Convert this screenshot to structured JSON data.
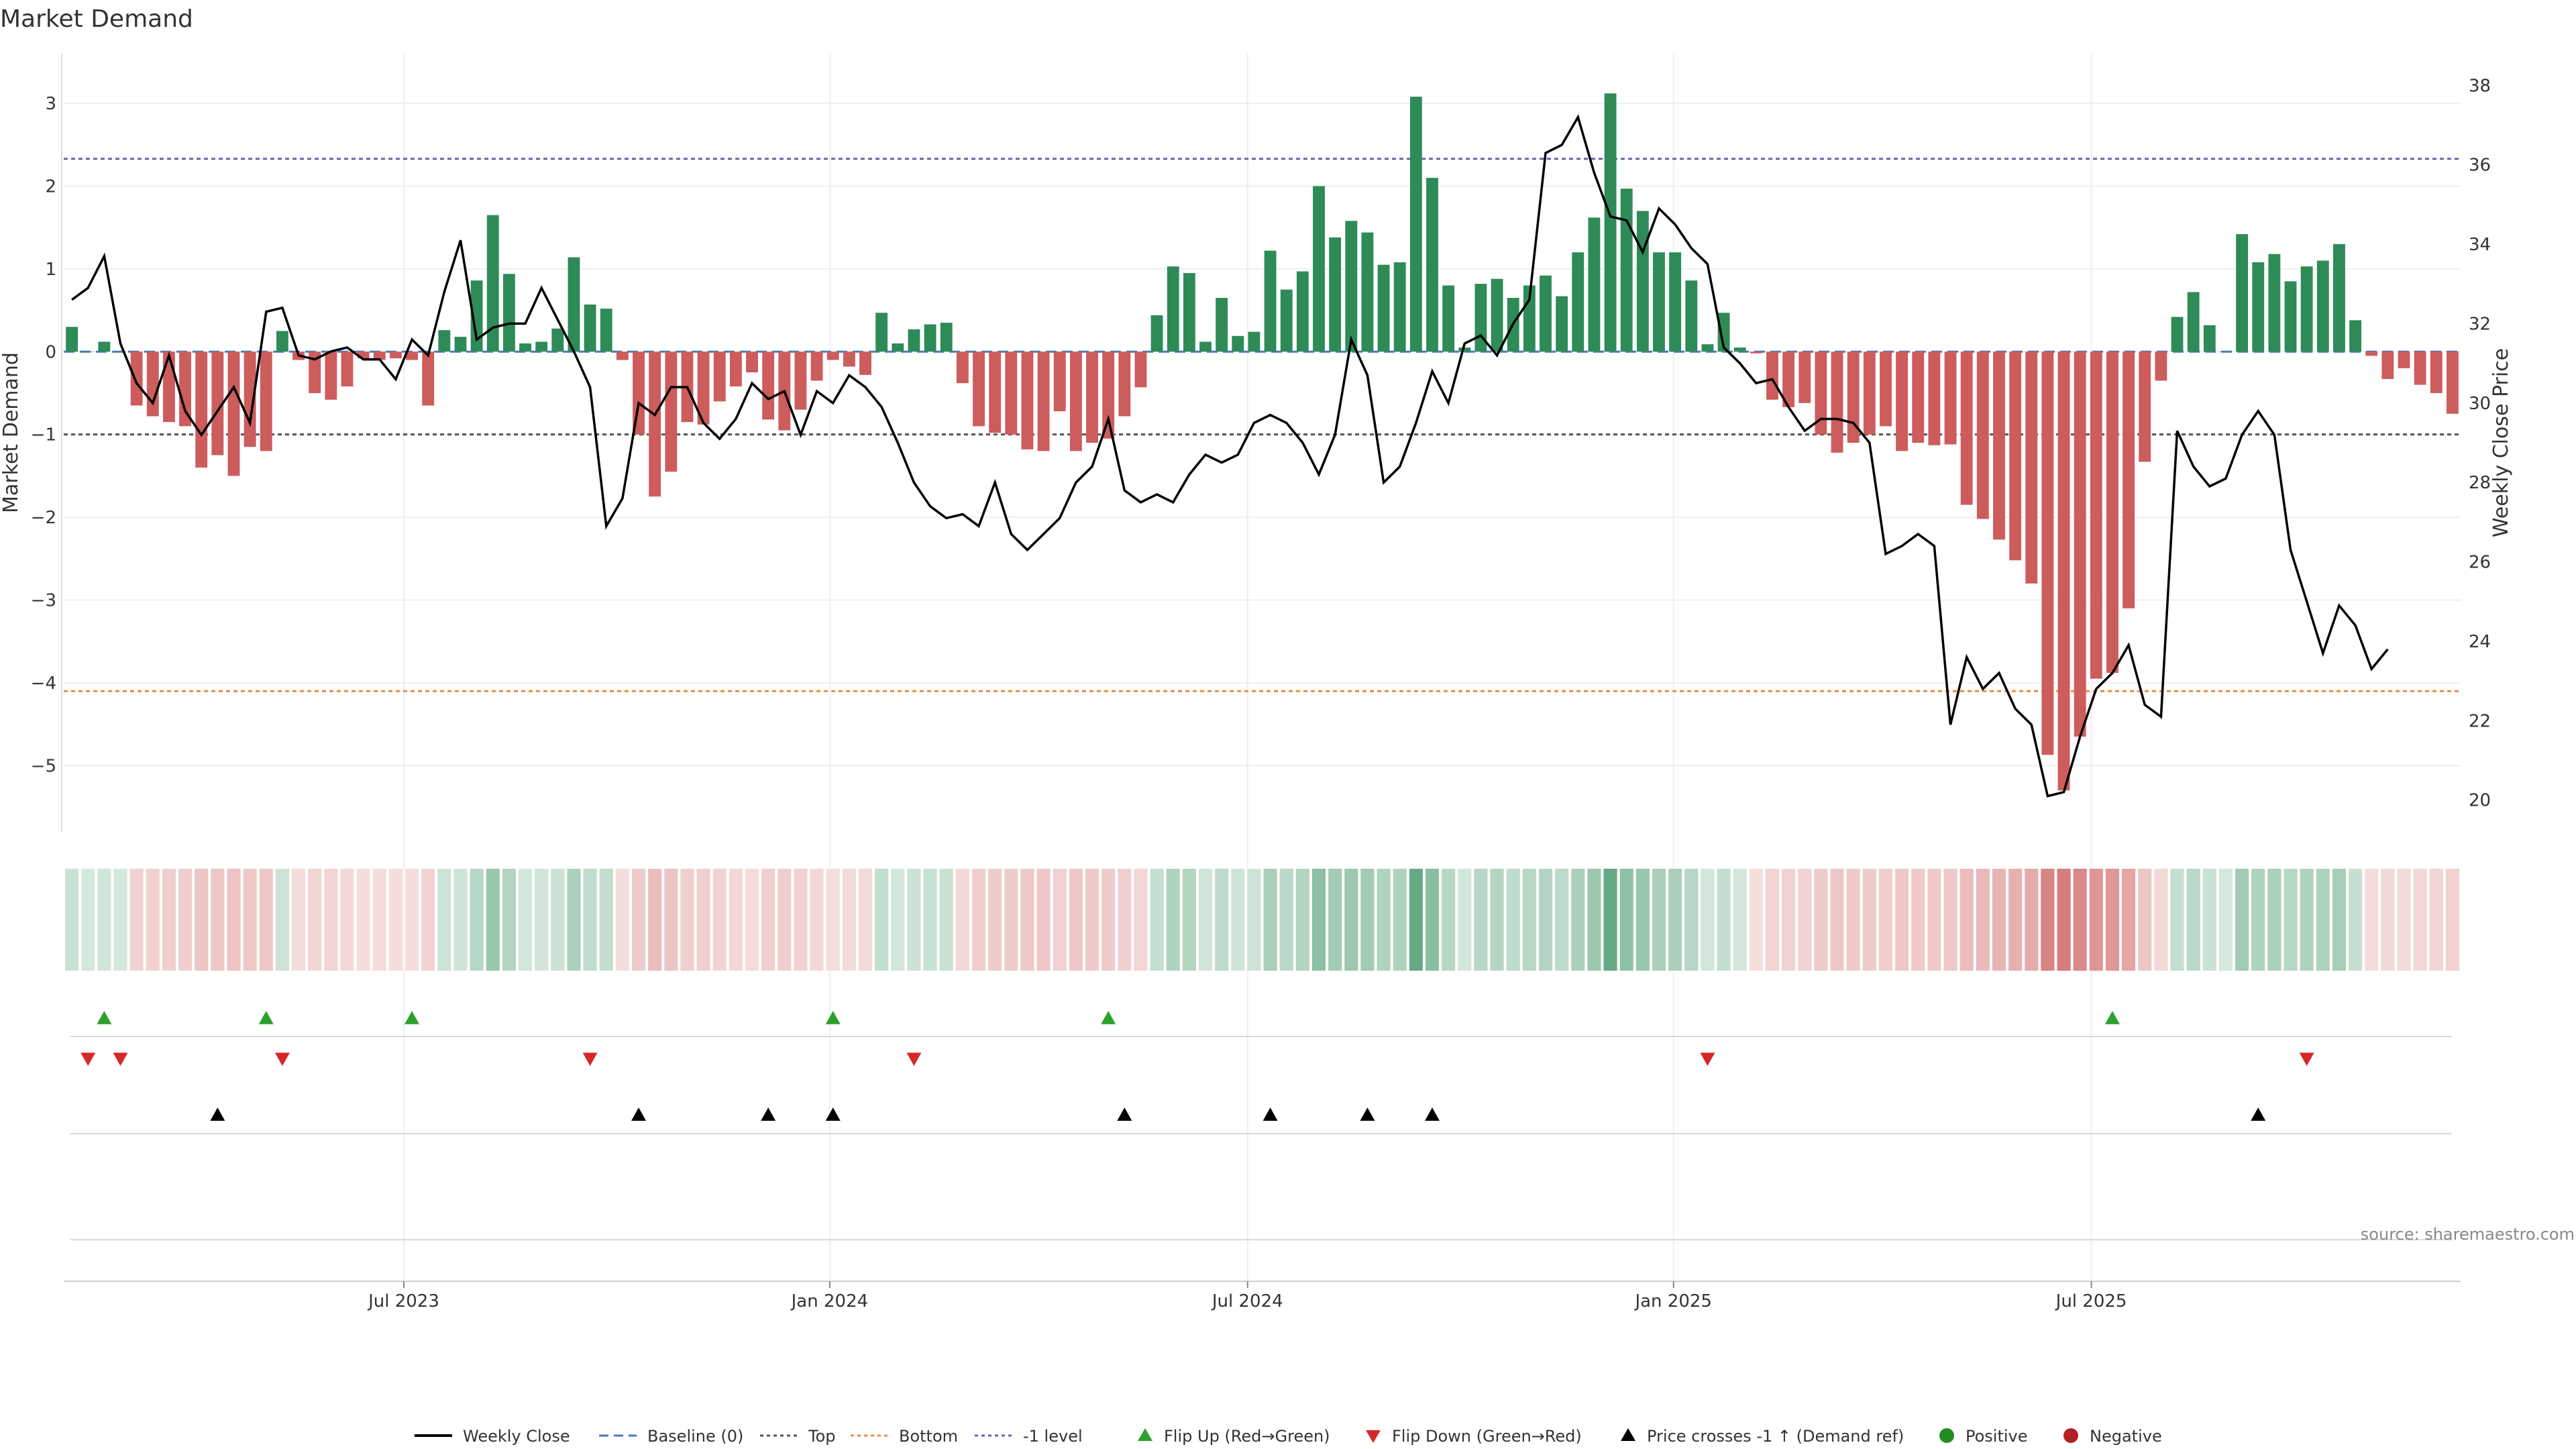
{
  "chart_data": {
    "type": "bar",
    "title": "Market Demand",
    "ylabel": "Market Demand",
    "y2label": "Weekly Close Price",
    "ylim": [
      -5.8,
      3.6
    ],
    "y2lim": [
      19.2,
      38.8
    ],
    "y_ticks": [
      3,
      2,
      1,
      0,
      -1,
      -2,
      -3,
      -4,
      -5
    ],
    "y_tick_labels": [
      "3",
      "2",
      "1",
      "0",
      "−1",
      "−2",
      "−3",
      "−4",
      "−5"
    ],
    "y2_ticks": [
      38,
      36,
      34,
      32,
      30,
      28,
      26,
      24,
      22,
      20
    ],
    "y2_tick_labels": [
      "38",
      "36",
      "34",
      "32",
      "30",
      "28",
      "26",
      "24",
      "22",
      "20"
    ],
    "x_start": "2023-02-05",
    "x_ticks": [
      {
        "label": "Jul 2023",
        "week": 21
      },
      {
        "label": "Jan 2024",
        "week": 47.3
      },
      {
        "label": "Jul 2024",
        "week": 73.1
      },
      {
        "label": "Jan 2025",
        "week": 99.4
      },
      {
        "label": "Jul 2025",
        "week": 125.2
      }
    ],
    "reference_lines": [
      {
        "name": "Top",
        "value": 2.33,
        "color": "#6b5fb5"
      },
      {
        "name": "Bottom",
        "value": -4.1,
        "color": "#f0883e"
      },
      {
        "name": "-1 level",
        "value": -1.0,
        "color": "#555555"
      },
      {
        "name": "Baseline (0)",
        "value": 0,
        "color": "#4a78c2"
      }
    ],
    "demand": [
      0.3,
      0,
      0.12,
      0,
      -0.65,
      -0.78,
      -0.85,
      -0.9,
      -1.4,
      -1.25,
      -1.5,
      -1.15,
      -1.2,
      0.25,
      -0.1,
      -0.5,
      -0.58,
      -0.42,
      -0.08,
      -0.1,
      -0.08,
      -0.1,
      -0.65,
      0.26,
      0.18,
      0.86,
      1.65,
      0.94,
      0.1,
      0.12,
      0.28,
      1.14,
      0.57,
      0.52,
      -0.1,
      -1.0,
      -1.75,
      -1.45,
      -0.85,
      -0.88,
      -0.6,
      -0.42,
      -0.25,
      -0.82,
      -0.95,
      -0.7,
      -0.35,
      -0.1,
      -0.18,
      -0.28,
      0.47,
      0.1,
      0.27,
      0.33,
      0.35,
      -0.38,
      -0.9,
      -0.98,
      -1.0,
      -1.18,
      -1.2,
      -0.72,
      -1.2,
      -1.1,
      -1.05,
      -0.78,
      -0.43,
      0.44,
      1.03,
      0.95,
      0.12,
      0.65,
      0.19,
      0.24,
      1.22,
      0.75,
      0.97,
      2.0,
      1.38,
      1.58,
      1.44,
      1.05,
      1.08,
      3.08,
      2.1,
      0.8,
      0.05,
      0.82,
      0.88,
      0.65,
      0.8,
      0.92,
      0.67,
      1.2,
      1.62,
      3.12,
      1.97,
      1.7,
      1.2,
      1.2,
      0.86,
      0.09,
      0.47,
      0.05,
      -0.02,
      -0.58,
      -0.67,
      -0.62,
      -1.0,
      -1.22,
      -1.1,
      -1.0,
      -0.9,
      -1.2,
      -1.1,
      -1.13,
      -1.12,
      -1.85,
      -2.02,
      -2.27,
      -2.52,
      -2.8,
      -4.87,
      -5.3,
      -4.65,
      -3.95,
      -3.88,
      -3.1,
      -1.33,
      -0.35,
      0.42,
      0.72,
      0.32,
      0,
      1.42,
      1.08,
      1.18,
      0.85,
      1.03,
      1.1,
      1.3,
      0.38,
      -0.05,
      -0.33,
      -0.2,
      -0.4,
      -0.5,
      -0.75
    ],
    "weekly_close": [
      32.6,
      32.9,
      33.7,
      31.5,
      30.5,
      30.0,
      31.2,
      29.8,
      29.2,
      29.8,
      30.4,
      29.5,
      32.3,
      32.4,
      31.2,
      31.1,
      31.3,
      31.4,
      31.1,
      31.1,
      30.6,
      31.6,
      31.2,
      32.8,
      34.1,
      31.6,
      31.9,
      32.0,
      32.0,
      32.9,
      32.1,
      31.3,
      30.4,
      26.9,
      27.6,
      30.0,
      29.7,
      30.4,
      30.4,
      29.5,
      29.1,
      29.6,
      30.5,
      30.1,
      30.3,
      29.2,
      30.3,
      30.0,
      30.7,
      30.4,
      29.9,
      29.0,
      28.0,
      27.4,
      27.1,
      27.2,
      26.9,
      28.0,
      26.7,
      26.3,
      26.7,
      27.1,
      28.0,
      28.4,
      29.6,
      27.8,
      27.5,
      27.7,
      27.5,
      28.2,
      28.7,
      28.5,
      28.7,
      29.5,
      29.7,
      29.5,
      29.0,
      28.2,
      29.2,
      31.6,
      30.7,
      28.0,
      28.4,
      29.5,
      30.8,
      30.0,
      31.5,
      31.7,
      31.2,
      32.0,
      32.6,
      36.3,
      36.5,
      37.2,
      35.8,
      34.7,
      34.6,
      33.8,
      34.9,
      34.5,
      33.9,
      33.5,
      31.4,
      31.0,
      30.5,
      30.6,
      29.9,
      29.3,
      29.6,
      29.6,
      29.5,
      29.0,
      26.2,
      26.4,
      26.7,
      26.4,
      21.9,
      23.6,
      22.8,
      23.2,
      22.3,
      21.9,
      20.1,
      20.2,
      21.6,
      22.8,
      23.2,
      23.9,
      22.4,
      22.1,
      29.3,
      28.4,
      27.9,
      28.1,
      29.2,
      29.8,
      29.2,
      26.3,
      25.0,
      23.7,
      24.9,
      24.4,
      23.3,
      23.8
    ],
    "flip_up_weeks": [
      2,
      12,
      21,
      47,
      64,
      126
    ],
    "flip_down_weeks": [
      1,
      3,
      13,
      32,
      52,
      101,
      138
    ],
    "price_cross_weeks": [
      9,
      35,
      43,
      47,
      65,
      74,
      80,
      84,
      135
    ],
    "legend": [
      "Weekly Close",
      "Baseline (0)",
      "Top",
      "Bottom",
      "-1 level",
      "Flip Up (Red→Green)",
      "Flip Down (Green→Red)",
      "Price crosses -1 ↑ (Demand ref)",
      "Positive",
      "Negative"
    ],
    "colors": {
      "positive": "#2e8b57",
      "negative": "#cd5c5c",
      "price": "#000000",
      "flip_up": "#2ca02c",
      "flip_down": "#d62728",
      "cross": "#000000",
      "positive_dot": "#228b22",
      "negative_dot": "#b22222"
    },
    "source": "source: sharemaestro.com"
  }
}
